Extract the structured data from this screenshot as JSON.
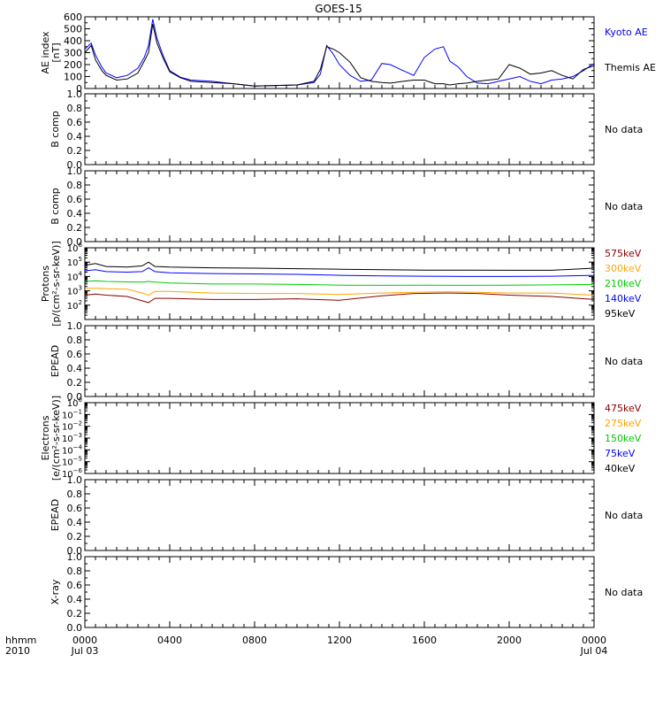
{
  "title": "GOES-15",
  "time_axis": {
    "label_row1": "hhmm",
    "label_row2": "2010",
    "ticks": [
      {
        "hour": 0,
        "time": "0000",
        "date": "Jul 03"
      },
      {
        "hour": 4,
        "time": "0400",
        "date": ""
      },
      {
        "hour": 8,
        "time": "0800",
        "date": ""
      },
      {
        "hour": 12,
        "time": "1200",
        "date": ""
      },
      {
        "hour": 16,
        "time": "1600",
        "date": ""
      },
      {
        "hour": 20,
        "time": "2000",
        "date": ""
      },
      {
        "hour": 24,
        "time": "0000",
        "date": "Jul 04"
      }
    ]
  },
  "colors": {
    "black": "#000000",
    "blue": "#0000ff",
    "darkred": "#8b0000",
    "orange": "#ffa500",
    "green": "#00cc00",
    "blue2": "#0000ff"
  },
  "chart_data": [
    {
      "type": "line",
      "ylabel": "AE index\n[nT]",
      "ylim": [
        0,
        600
      ],
      "yticks": [
        "0",
        "100",
        "200",
        "300",
        "400",
        "500",
        "600"
      ],
      "legend": [
        {
          "name": "Kyoto AE",
          "color": "#0000ff"
        },
        {
          "name": "Themis AE",
          "color": "#000000"
        }
      ],
      "series": [
        {
          "name": "Kyoto AE",
          "color": "#0000ff",
          "x": [
            0,
            0.3,
            0.5,
            0.8,
            1.0,
            1.5,
            2.0,
            2.5,
            2.8,
            3.0,
            3.2,
            3.4,
            3.7,
            4.0,
            4.5,
            5.0,
            6.0,
            7.0,
            8.0,
            9.0,
            10.0,
            10.8,
            11.1,
            11.4,
            11.7,
            12.0,
            12.5,
            13.0,
            13.5,
            14.0,
            14.4,
            15.0,
            15.5,
            16.0,
            16.5,
            16.9,
            17.2,
            17.6,
            18.0,
            18.5,
            19.0,
            19.5,
            20.0,
            20.5,
            21.0,
            21.5,
            22.0,
            22.5,
            23.0,
            23.5,
            24.0
          ],
          "y": [
            330,
            380,
            280,
            180,
            130,
            90,
            110,
            170,
            260,
            360,
            580,
            420,
            270,
            150,
            95,
            70,
            60,
            40,
            20,
            25,
            30,
            50,
            120,
            360,
            290,
            200,
            110,
            60,
            70,
            210,
            200,
            150,
            110,
            260,
            330,
            350,
            230,
            180,
            100,
            45,
            40,
            60,
            80,
            100,
            60,
            40,
            70,
            80,
            100,
            150,
            210
          ]
        },
        {
          "name": "Themis AE",
          "color": "#000000",
          "x": [
            0,
            0.3,
            0.5,
            0.8,
            1.0,
            1.5,
            2.0,
            2.5,
            2.8,
            3.0,
            3.2,
            3.4,
            3.7,
            4.0,
            4.5,
            5.0,
            6.0,
            7.0,
            8.0,
            9.0,
            10.0,
            10.8,
            11.1,
            11.4,
            11.7,
            12.0,
            12.5,
            13.0,
            13.5,
            14.0,
            14.4,
            15.0,
            15.5,
            16.0,
            16.5,
            16.9,
            17.2,
            17.6,
            18.0,
            18.5,
            19.0,
            19.5,
            20.0,
            20.5,
            21.0,
            21.5,
            22.0,
            22.5,
            23.0,
            23.5,
            24.0
          ],
          "y": [
            300,
            360,
            240,
            150,
            110,
            70,
            80,
            130,
            230,
            300,
            540,
            380,
            250,
            140,
            90,
            60,
            50,
            40,
            20,
            25,
            30,
            60,
            160,
            350,
            330,
            300,
            220,
            90,
            60,
            50,
            45,
            60,
            70,
            70,
            40,
            40,
            30,
            40,
            45,
            60,
            70,
            80,
            200,
            170,
            120,
            130,
            150,
            110,
            80,
            160,
            190
          ]
        }
      ]
    },
    {
      "type": "line",
      "ylabel": "B comp",
      "ylim": [
        0,
        1
      ],
      "yticks": [
        "0.0",
        "0.2",
        "0.4",
        "0.6",
        "0.8",
        "1.0"
      ],
      "status": "No data",
      "series": []
    },
    {
      "type": "line",
      "ylabel": "B comp",
      "ylim": [
        0,
        1
      ],
      "yticks": [
        "0.0",
        "0.2",
        "0.4",
        "0.6",
        "0.8",
        "1.0"
      ],
      "status": "No data",
      "series": []
    },
    {
      "type": "line",
      "scale": "log",
      "ylabel": "Protons\n[p/(cm²-s-sr-keV)]",
      "ylim": [
        10.0,
        1000000.0
      ],
      "ytick_exps": [
        2,
        3,
        4,
        5,
        6
      ],
      "legend": [
        {
          "name": "575keV",
          "color": "#8b0000"
        },
        {
          "name": "300keV",
          "color": "#ffa500"
        },
        {
          "name": "210keV",
          "color": "#00cc00"
        },
        {
          "name": "140keV",
          "color": "#0000ff"
        },
        {
          "name": "95keV",
          "color": "#000000"
        }
      ],
      "series": [
        {
          "name": "95keV",
          "color": "#000000",
          "x": [
            0,
            0.5,
            1.0,
            2.0,
            2.7,
            3.0,
            3.3,
            4.0,
            6.0,
            8.0,
            10.0,
            12.0,
            14.0,
            16.0,
            18.0,
            20.0,
            22.0,
            24.0
          ],
          "y": [
            60000,
            80000,
            50000,
            45000,
            55000,
            100000,
            50000,
            45000,
            40000,
            38000,
            35000,
            32000,
            30000,
            28000,
            28000,
            27000,
            27000,
            38000
          ]
        },
        {
          "name": "140keV",
          "color": "#0000ff",
          "x": [
            0,
            0.5,
            1.0,
            2.0,
            2.7,
            3.0,
            3.3,
            4.0,
            6.0,
            8.0,
            10.0,
            12.0,
            14.0,
            16.0,
            18.0,
            20.0,
            22.0,
            24.0
          ],
          "y": [
            25000,
            30000,
            22000,
            20000,
            22000,
            40000,
            22000,
            18000,
            16000,
            15000,
            14000,
            12000,
            11000,
            10500,
            10000,
            10000,
            10500,
            12000
          ]
        },
        {
          "name": "210keV",
          "color": "#00cc00",
          "x": [
            0,
            0.5,
            1.0,
            2.0,
            2.7,
            3.0,
            3.3,
            4.0,
            6.0,
            8.0,
            10.0,
            12.0,
            14.0,
            16.0,
            18.0,
            20.0,
            22.0,
            24.0
          ],
          "y": [
            4500,
            5000,
            4500,
            4200,
            4000,
            4500,
            4000,
            3500,
            3000,
            3000,
            2800,
            2500,
            2400,
            2500,
            2400,
            2500,
            2600,
            2800
          ]
        },
        {
          "name": "300keV",
          "color": "#ffa500",
          "x": [
            0,
            0.5,
            1.0,
            2.0,
            2.7,
            3.0,
            3.3,
            4.0,
            6.0,
            8.0,
            10.0,
            12.0,
            14.0,
            15.5,
            17.0,
            18.5,
            20.0,
            22.0,
            24.0
          ],
          "y": [
            1500,
            1500,
            1400,
            1300,
            700,
            500,
            900,
            900,
            700,
            650,
            650,
            550,
            700,
            800,
            850,
            800,
            700,
            700,
            500
          ]
        },
        {
          "name": "575keV",
          "color": "#8b0000",
          "x": [
            0,
            0.5,
            1.0,
            2.0,
            2.7,
            3.0,
            3.3,
            4.0,
            6.0,
            8.0,
            10.0,
            12.0,
            14.0,
            15.5,
            17.0,
            18.5,
            20.0,
            22.0,
            24.0
          ],
          "y": [
            500,
            600,
            500,
            400,
            200,
            150,
            300,
            300,
            250,
            250,
            280,
            220,
            450,
            650,
            700,
            650,
            500,
            400,
            250
          ]
        }
      ]
    },
    {
      "type": "line",
      "ylabel": "EPEAD",
      "ylim": [
        0,
        1
      ],
      "yticks": [
        "0.0",
        "0.2",
        "0.4",
        "0.6",
        "0.8",
        "1.0"
      ],
      "status": "No data",
      "series": []
    },
    {
      "type": "line",
      "scale": "log",
      "ylabel": "Electrons\n[e/(cm²-s-sr-keV)]",
      "ylim": [
        1e-06,
        1.0
      ],
      "ytick_exps": [
        -6,
        -5,
        -4,
        -3,
        -2,
        -1,
        0
      ],
      "legend": [
        {
          "name": "475keV",
          "color": "#8b0000"
        },
        {
          "name": "275keV",
          "color": "#ffa500"
        },
        {
          "name": "150keV",
          "color": "#00cc00"
        },
        {
          "name": "75keV",
          "color": "#0000ff"
        },
        {
          "name": "40keV",
          "color": "#000000"
        }
      ],
      "series": []
    },
    {
      "type": "line",
      "ylabel": "EPEAD",
      "ylim": [
        0,
        1
      ],
      "yticks": [
        "0.0",
        "0.2",
        "0.4",
        "0.6",
        "0.8",
        "1.0"
      ],
      "status": "No data",
      "series": []
    },
    {
      "type": "line",
      "ylabel": "X-ray",
      "ylim": [
        0,
        1
      ],
      "yticks": [
        "0.0",
        "0.2",
        "0.4",
        "0.6",
        "0.8",
        "1.0"
      ],
      "status": "No data",
      "series": []
    }
  ]
}
